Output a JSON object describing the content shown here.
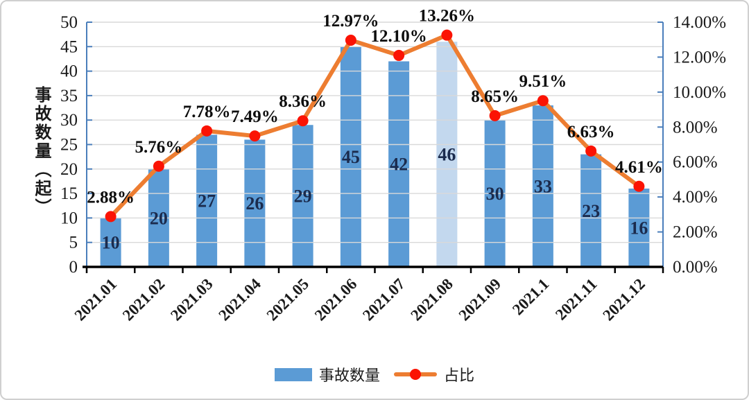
{
  "chart_data": {
    "type": "bar+line combo",
    "categories": [
      "2021.01",
      "2021.02",
      "2021.03",
      "2021.04",
      "2021.05",
      "2021.06",
      "2021.07",
      "2021.08",
      "2021.09",
      "2021.1",
      "2021.11",
      "2021.12"
    ],
    "series": [
      {
        "name": "事故数量",
        "type": "bar",
        "axis": "left",
        "values": [
          10,
          20,
          27,
          26,
          29,
          45,
          42,
          46,
          30,
          33,
          23,
          16
        ],
        "value_labels": [
          "10",
          "20",
          "27",
          "26",
          "29",
          "45",
          "42",
          "46",
          "30",
          "33",
          "23",
          "16"
        ],
        "color": "#5b9bd5",
        "highlight_index": 7,
        "highlight_color": "#c3d8ee"
      },
      {
        "name": "占比",
        "type": "line",
        "axis": "right",
        "values": [
          2.88,
          5.76,
          7.78,
          7.49,
          8.36,
          12.97,
          12.1,
          13.26,
          8.65,
          9.51,
          6.63,
          4.61
        ],
        "value_labels": [
          "2.88%",
          "5.76%",
          "7.78%",
          "7.49%",
          "8.36%",
          "12.97%",
          "12.10%",
          "13.26%",
          "8.65%",
          "9.51%",
          "6.63%",
          "4.61%"
        ],
        "color": "#ed7d31",
        "marker_color": "#fb1304"
      }
    ],
    "left_axis": {
      "title": "事故数量（起）",
      "min": 0,
      "max": 50,
      "step": 5,
      "tick_labels": [
        "0",
        "5",
        "10",
        "15",
        "20",
        "25",
        "30",
        "35",
        "40",
        "45",
        "50"
      ]
    },
    "right_axis": {
      "min": 0,
      "max": 14,
      "step": 2,
      "tick_labels": [
        "0.00%",
        "2.00%",
        "4.00%",
        "6.00%",
        "8.00%",
        "10.00%",
        "12.00%",
        "14.00%"
      ]
    },
    "grid": true,
    "legend": {
      "position": "bottom",
      "items": [
        {
          "label": "事故数量",
          "swatch": "bar"
        },
        {
          "label": "占比",
          "swatch": "line-marker"
        }
      ]
    },
    "title": ""
  },
  "colors": {
    "bar": "#5b9bd5",
    "bar_highlight": "#c3d8ee",
    "line": "#ed7d31",
    "marker": "#fb1304",
    "gridline": "#d9d9d9",
    "value_axis_line": "#4a7ebb",
    "category_axis_line": "#000000",
    "bar_label_text": "#1b2b4d",
    "percent_label_text": "#0d0d0d",
    "tick_text": "#1a1a1a"
  }
}
